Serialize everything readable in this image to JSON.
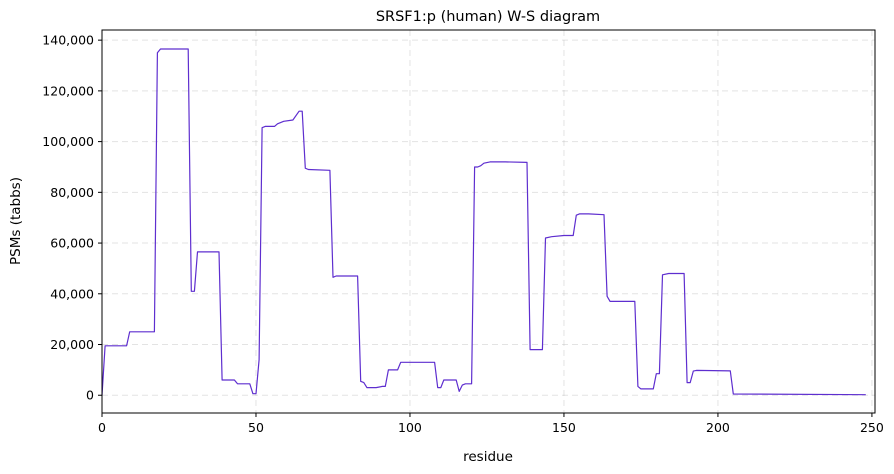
{
  "chart_data": {
    "type": "line",
    "title": "SRSF1:p (human) W-S diagram",
    "xlabel": "residue",
    "ylabel": "PSMs (tabbs)",
    "xlim": [
      0,
      251
    ],
    "ylim": [
      -7000,
      144000
    ],
    "xticks": [
      0,
      50,
      100,
      150,
      200,
      250
    ],
    "yticks": [
      0,
      20000,
      40000,
      60000,
      80000,
      100000,
      120000,
      140000
    ],
    "ytick_labels": [
      "0",
      "20,000",
      "40,000",
      "60,000",
      "80,000",
      "100,000",
      "120,000",
      "140,000"
    ],
    "grid": true,
    "line_color": "#5e2ecf",
    "series": [
      {
        "x": [
          0,
          1,
          2,
          8,
          9,
          17,
          18,
          19,
          21,
          28,
          29,
          30,
          31,
          38,
          39,
          40,
          43,
          44,
          48,
          49,
          50,
          51,
          52,
          53,
          56,
          57,
          59,
          62,
          64,
          65,
          66,
          67,
          74,
          75,
          76,
          82,
          83,
          84,
          85,
          86,
          89,
          91,
          92,
          93,
          96,
          97,
          108,
          109,
          110,
          111,
          115,
          116,
          117,
          118,
          120,
          121,
          122,
          123,
          124,
          126,
          131,
          138,
          139,
          140,
          143,
          144,
          146,
          150,
          153,
          154,
          155,
          158,
          163,
          164,
          165,
          166,
          173,
          174,
          175,
          179,
          180,
          181,
          182,
          184,
          189,
          190,
          191,
          192,
          193,
          204,
          205,
          248
        ],
        "y": [
          0,
          19500,
          19500,
          19500,
          25000,
          25000,
          135000,
          136500,
          136500,
          136500,
          41000,
          41000,
          56500,
          56500,
          6000,
          6000,
          6000,
          4500,
          4500,
          600,
          600,
          14000,
          105500,
          106000,
          106000,
          107000,
          108000,
          108500,
          112000,
          112000,
          89500,
          89000,
          88700,
          46500,
          47000,
          47000,
          47000,
          5500,
          5000,
          3000,
          3000,
          3500,
          3500,
          10000,
          10000,
          13000,
          13000,
          3000,
          3000,
          6000,
          6000,
          1500,
          4000,
          4500,
          4500,
          90000,
          90000,
          90500,
          91500,
          92000,
          92000,
          91800,
          18000,
          18000,
          18000,
          62000,
          62500,
          63000,
          63000,
          71000,
          71500,
          71500,
          71200,
          39000,
          37000,
          37000,
          37000,
          3500,
          2500,
          2500,
          8500,
          8500,
          47500,
          48000,
          48000,
          5000,
          5000,
          9500,
          9800,
          9600,
          500,
          200
        ]
      }
    ]
  }
}
